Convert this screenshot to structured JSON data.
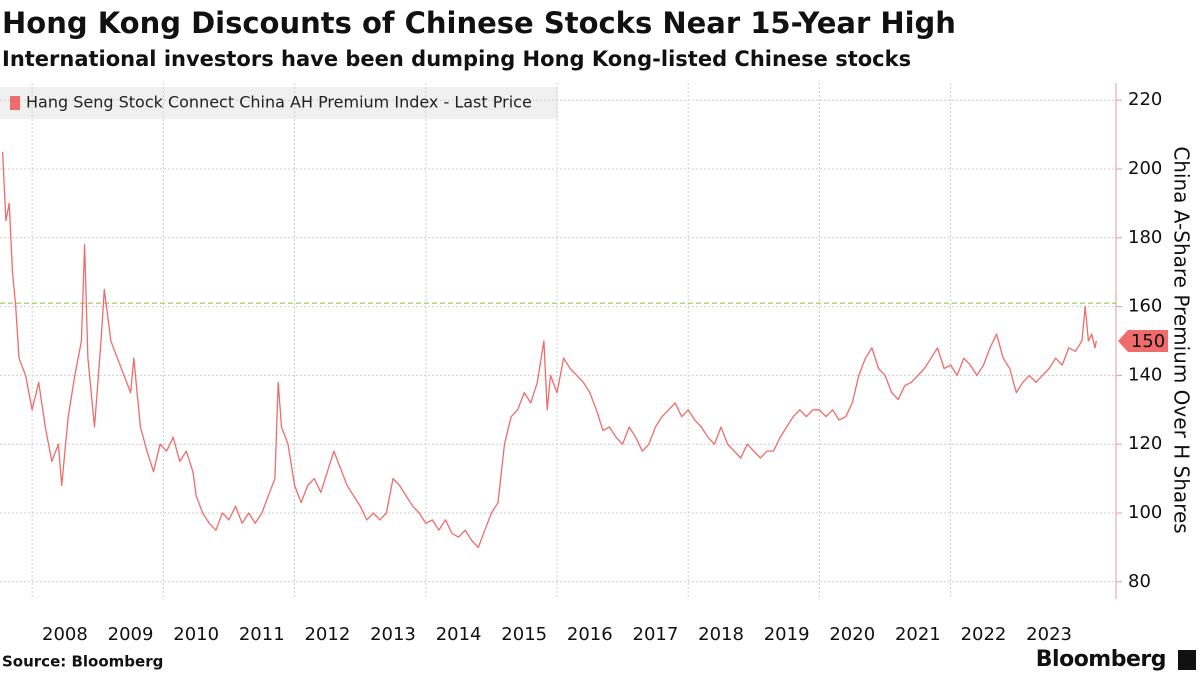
{
  "chart_data": {
    "type": "line",
    "title": "Hong Kong Discounts of Chinese Stocks Near 15-Year High",
    "subtitle": "International investors have been dumping Hong Kong-listed Chinese stocks",
    "y_label": "China A-Share Premium Over H Shares",
    "source": "Source: Bloomberg",
    "logo": "Bloomberg",
    "xlim": [
      2007.51,
      2024.52
    ],
    "xticks": [
      2008,
      2009,
      2010,
      2011,
      2012,
      2013,
      2014,
      2015,
      2016,
      2017,
      2018,
      2019,
      2020,
      2021,
      2022,
      2023
    ],
    "ylim": [
      75,
      225
    ],
    "yticks": [
      80,
      100,
      120,
      140,
      160,
      180,
      200,
      220
    ],
    "grid": true,
    "reference_line": 161,
    "last_value": 150,
    "series": [
      {
        "name": "Hang Seng Stock Connect China AH Premium Index - Last Price",
        "color": "#f06b6b",
        "x": [
          2007.55,
          2007.6,
          2007.65,
          2007.7,
          2007.75,
          2007.8,
          2007.9,
          2008.0,
          2008.1,
          2008.2,
          2008.3,
          2008.4,
          2008.45,
          2008.55,
          2008.65,
          2008.75,
          2008.8,
          2008.85,
          2008.95,
          2009.05,
          2009.1,
          2009.2,
          2009.3,
          2009.4,
          2009.5,
          2009.55,
          2009.65,
          2009.75,
          2009.85,
          2009.95,
          2010.05,
          2010.15,
          2010.25,
          2010.35,
          2010.45,
          2010.5,
          2010.6,
          2010.7,
          2010.8,
          2010.9,
          2011.0,
          2011.1,
          2011.2,
          2011.3,
          2011.4,
          2011.5,
          2011.6,
          2011.7,
          2011.75,
          2011.8,
          2011.9,
          2012.0,
          2012.1,
          2012.2,
          2012.3,
          2012.4,
          2012.5,
          2012.6,
          2012.7,
          2012.8,
          2012.9,
          2013.0,
          2013.1,
          2013.2,
          2013.3,
          2013.4,
          2013.5,
          2013.6,
          2013.7,
          2013.8,
          2013.9,
          2014.0,
          2014.1,
          2014.2,
          2014.3,
          2014.4,
          2014.5,
          2014.6,
          2014.7,
          2014.8,
          2014.9,
          2015.0,
          2015.1,
          2015.2,
          2015.3,
          2015.4,
          2015.5,
          2015.6,
          2015.7,
          2015.8,
          2015.85,
          2015.9,
          2016.0,
          2016.1,
          2016.2,
          2016.3,
          2016.4,
          2016.5,
          2016.6,
          2016.7,
          2016.8,
          2016.9,
          2017.0,
          2017.1,
          2017.2,
          2017.3,
          2017.4,
          2017.5,
          2017.6,
          2017.7,
          2017.8,
          2017.9,
          2018.0,
          2018.1,
          2018.2,
          2018.3,
          2018.4,
          2018.5,
          2018.6,
          2018.7,
          2018.8,
          2018.9,
          2019.0,
          2019.1,
          2019.2,
          2019.3,
          2019.4,
          2019.5,
          2019.6,
          2019.7,
          2019.8,
          2019.9,
          2020.0,
          2020.1,
          2020.2,
          2020.3,
          2020.4,
          2020.5,
          2020.6,
          2020.7,
          2020.8,
          2020.9,
          2021.0,
          2021.1,
          2021.2,
          2021.3,
          2021.4,
          2021.5,
          2021.6,
          2021.7,
          2021.8,
          2021.9,
          2022.0,
          2022.1,
          2022.2,
          2022.3,
          2022.4,
          2022.5,
          2022.6,
          2022.7,
          2022.8,
          2022.9,
          2023.0,
          2023.1,
          2023.2,
          2023.3,
          2023.4,
          2023.5,
          2023.6,
          2023.7,
          2023.8,
          2023.9,
          2024.0,
          2024.05,
          2024.1,
          2024.15,
          2024.2,
          2024.22
        ],
        "values": [
          205,
          185,
          190,
          170,
          160,
          145,
          140,
          130,
          138,
          125,
          115,
          120,
          108,
          128,
          140,
          150,
          178,
          145,
          125,
          150,
          165,
          150,
          145,
          140,
          135,
          145,
          125,
          118,
          112,
          120,
          118,
          122,
          115,
          118,
          112,
          105,
          100,
          97,
          95,
          100,
          98,
          102,
          97,
          100,
          97,
          100,
          105,
          110,
          138,
          125,
          120,
          108,
          103,
          108,
          110,
          106,
          112,
          118,
          113,
          108,
          105,
          102,
          98,
          100,
          98,
          100,
          110,
          108,
          105,
          102,
          100,
          97,
          98,
          95,
          98,
          94,
          93,
          95,
          92,
          90,
          95,
          100,
          103,
          120,
          128,
          130,
          135,
          132,
          138,
          150,
          130,
          140,
          135,
          145,
          142,
          140,
          138,
          135,
          130,
          124,
          125,
          122,
          120,
          125,
          122,
          118,
          120,
          125,
          128,
          130,
          132,
          128,
          130,
          127,
          125,
          122,
          120,
          125,
          120,
          118,
          116,
          120,
          118,
          116,
          118,
          118,
          122,
          125,
          128,
          130,
          128,
          130,
          130,
          128,
          130,
          127,
          128,
          132,
          140,
          145,
          148,
          142,
          140,
          135,
          133,
          137,
          138,
          140,
          142,
          145,
          148,
          142,
          143,
          140,
          145,
          143,
          140,
          143,
          148,
          152,
          145,
          142,
          135,
          138,
          140,
          138,
          140,
          142,
          145,
          143,
          148,
          147,
          150,
          160,
          150,
          152,
          148,
          150
        ]
      }
    ]
  }
}
